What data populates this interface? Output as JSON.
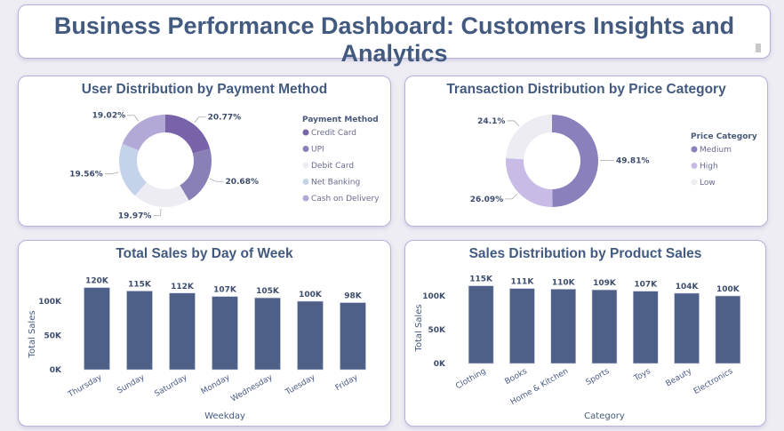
{
  "title": "Business Performance Dashboard: Customers Insights and Analytics",
  "chart_data": [
    {
      "type": "pie",
      "title": "User Distribution by Payment Method",
      "legend_title": "Payment Method",
      "legend_position": "right",
      "donut": true,
      "labels": [
        "Credit Card",
        "UPI",
        "Debit Card",
        "Net Banking",
        "Cash on Delivery"
      ],
      "values": [
        20.77,
        20.68,
        19.97,
        19.56,
        19.02
      ],
      "value_labels": [
        "20.77%",
        "20.68%",
        "19.97%",
        "19.56%",
        "19.02%"
      ],
      "colors": [
        "#7862a8",
        "#8a80b8",
        "#ececf2",
        "#c5d3ea",
        "#b3a9d6"
      ]
    },
    {
      "type": "pie",
      "title": "Transaction Distribution by Price Category",
      "legend_title": "Price Category",
      "legend_position": "right",
      "donut": true,
      "labels": [
        "Medium",
        "High",
        "Low"
      ],
      "values": [
        49.81,
        26.09,
        24.1
      ],
      "value_labels": [
        "49.81%",
        "26.09%",
        "24.1%"
      ],
      "colors": [
        "#8a80bc",
        "#c8bce6",
        "#ececf2"
      ]
    },
    {
      "type": "bar",
      "title": "Total Sales by Day of Week",
      "xlabel": "Weekday",
      "ylabel": "Total Sales",
      "categories": [
        "Thursday",
        "Sunday",
        "Saturday",
        "Monday",
        "Wednesday",
        "Tuesday",
        "Friday"
      ],
      "values": [
        120000,
        115000,
        112000,
        107000,
        105000,
        100000,
        98000
      ],
      "value_labels": [
        "120K",
        "115K",
        "112K",
        "107K",
        "105K",
        "100K",
        "98K"
      ],
      "yticks": [
        "0K",
        "50K",
        "100K"
      ],
      "ylim": [
        0,
        125000
      ],
      "grid": false,
      "color": "#4e6087"
    },
    {
      "type": "bar",
      "title": "Sales Distribution by Product Sales",
      "xlabel": "Category",
      "ylabel": "Total Sales",
      "categories": [
        "Clothing",
        "Books",
        "Home & Kitchen",
        "Sports",
        "Toys",
        "Beauty",
        "Electronics"
      ],
      "values": [
        115000,
        111000,
        110000,
        109000,
        107000,
        104000,
        100000
      ],
      "value_labels": [
        "115K",
        "111K",
        "110K",
        "109K",
        "107K",
        "104K",
        "100K"
      ],
      "yticks": [
        "0K",
        "50K",
        "100K"
      ],
      "ylim": [
        0,
        125000
      ],
      "grid": false,
      "color": "#4e6087"
    }
  ]
}
